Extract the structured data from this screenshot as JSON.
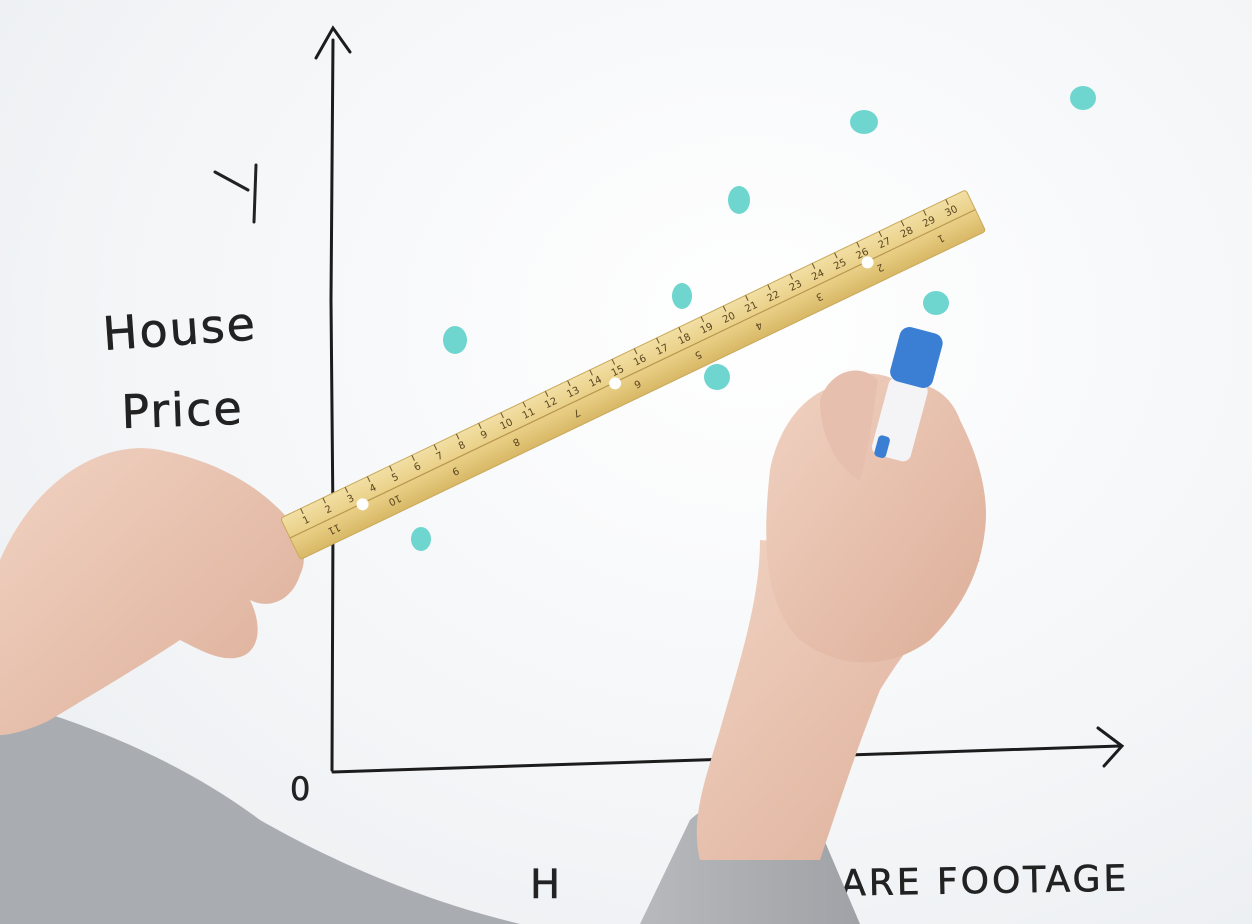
{
  "whiteboard": {
    "y_axis_label_short": "Y",
    "y_axis_label_line1": "House",
    "y_axis_label_line2": "Price",
    "origin_label": "0",
    "x_axis_label_left": "H",
    "x_axis_label_right": "UARE FOOTAGE",
    "marker_color": "#6fd6cf",
    "ink_color": "#222222"
  },
  "ruler": {
    "top_scale": [
      "1",
      "2",
      "3",
      "4",
      "5",
      "6",
      "7",
      "8",
      "9",
      "10",
      "11",
      "12",
      "13",
      "14",
      "15",
      "16",
      "17",
      "18",
      "19",
      "20",
      "21",
      "22",
      "23",
      "24",
      "25",
      "26",
      "27",
      "28",
      "29",
      "30"
    ],
    "bottom_scale": [
      "11",
      "10",
      "9",
      "8",
      "7",
      "6",
      "5",
      "4",
      "3",
      "2",
      "1"
    ]
  },
  "marker_pen": {
    "cap_color": "#3b7fd4"
  }
}
